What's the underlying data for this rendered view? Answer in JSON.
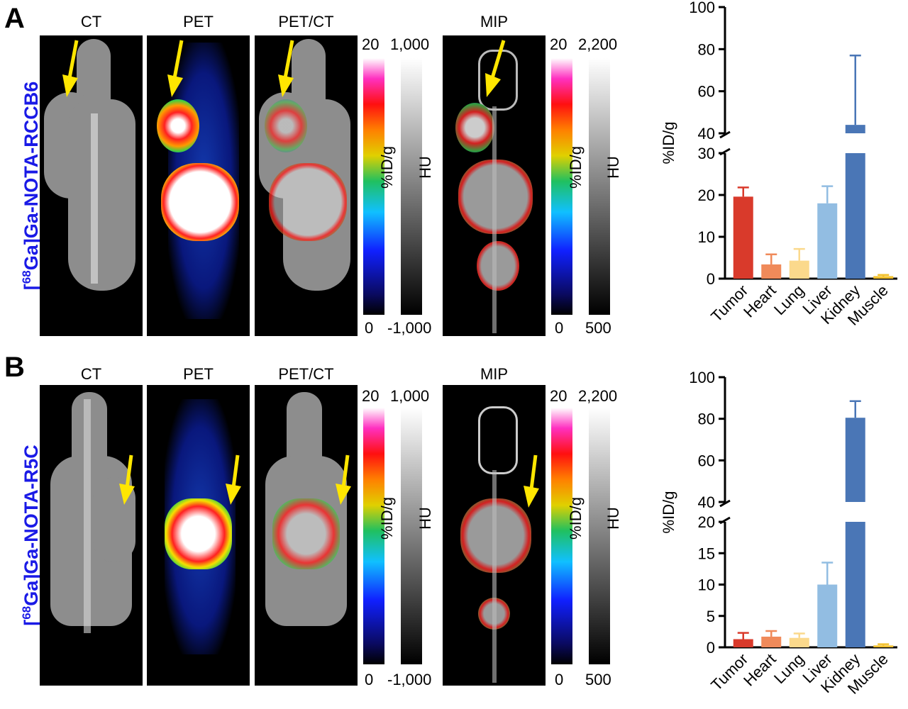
{
  "panels": [
    {
      "letter": "A",
      "tracer": {
        "prefix": "[",
        "isotope": "68",
        "suffix": "Ga]Ga-NOTA-RCCB6"
      },
      "image_labels": {
        "ct": "CT",
        "pet": "PET",
        "petct": "PET/CT",
        "mip": "MIP"
      },
      "colorbar_pet": {
        "max": "20",
        "min": "0",
        "unit": "%ID/g"
      },
      "colorbar_hu": {
        "max": "1,000",
        "min": "-1,000",
        "unit": "HU"
      },
      "colorbar_mip_pet": {
        "max": "20",
        "min": "0",
        "unit": "%ID/g"
      },
      "colorbar_mip_hu": {
        "max": "2,200",
        "min": "500",
        "unit": "HU"
      }
    },
    {
      "letter": "B",
      "tracer": {
        "prefix": "[",
        "isotope": "68",
        "suffix": "Ga]Ga-NOTA-R5C"
      },
      "image_labels": {
        "ct": "CT",
        "pet": "PET",
        "petct": "PET/CT",
        "mip": "MIP"
      },
      "colorbar_pet": {
        "max": "20",
        "min": "0",
        "unit": "%ID/g"
      },
      "colorbar_hu": {
        "max": "1,000",
        "min": "-1,000",
        "unit": "HU"
      },
      "colorbar_mip_pet": {
        "max": "20",
        "min": "0",
        "unit": "%ID/g"
      },
      "colorbar_mip_hu": {
        "max": "2,200",
        "min": "500",
        "unit": "HU"
      }
    }
  ],
  "colors": {
    "arrow": "#ffe600",
    "tracer_text": "#1a1ae6",
    "tumor": "#d93a2b",
    "heart": "#f08a5a",
    "lung": "#fbd98c",
    "liver": "#92bde2",
    "kidney": "#4a76b6",
    "muscle": "#f2c12e"
  },
  "chart_data": [
    {
      "type": "bar",
      "panel": "A",
      "categories": [
        "Tumor",
        "Heart",
        "Lung",
        "Liver",
        "Kidney",
        "Muscle"
      ],
      "values": [
        19.6,
        3.4,
        4.3,
        18.0,
        44.0,
        0.6
      ],
      "errors": [
        2.2,
        2.4,
        2.8,
        4.1,
        33.0,
        0.3
      ],
      "ylabel": "%ID/g",
      "axis_break": {
        "lower": [
          0,
          30
        ],
        "upper": [
          40,
          100
        ]
      },
      "yticks_lower": [
        0,
        10,
        20,
        30
      ],
      "yticks_upper": [
        40,
        60,
        80,
        100
      ],
      "ylim": [
        0,
        100
      ]
    },
    {
      "type": "bar",
      "panel": "B",
      "categories": [
        "Tumor",
        "Heart",
        "Lung",
        "Liver",
        "Kidney",
        "Muscle"
      ],
      "values": [
        1.3,
        1.7,
        1.5,
        10.0,
        80.5,
        0.3
      ],
      "errors": [
        1.0,
        0.9,
        0.7,
        3.5,
        8.0,
        0.2
      ],
      "ylabel": "%ID/g",
      "axis_break": {
        "lower": [
          0,
          20
        ],
        "upper": [
          40,
          100
        ]
      },
      "yticks_lower": [
        0,
        5,
        10,
        15,
        20
      ],
      "yticks_upper": [
        40,
        60,
        80,
        100
      ],
      "ylim": [
        0,
        100
      ]
    }
  ]
}
